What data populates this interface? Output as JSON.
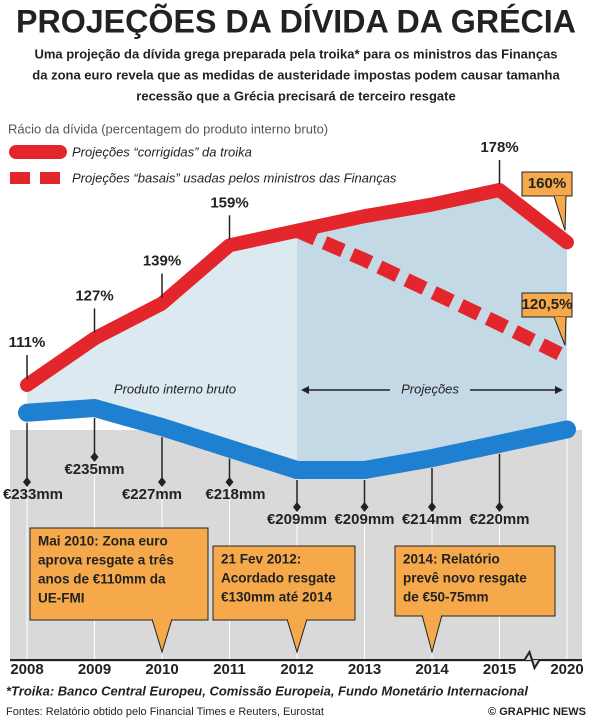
{
  "chart_data": {
    "type": "line",
    "title": "PROJEÇÕES DA DÍVIDA DA GRÉCIA",
    "subtitle": [
      "Uma projeção da dívida grega preparada pela troika* para os ministros das Finanças",
      "da zona euro revela que as medidas de austeridade impostas podem causar tamanha",
      "recessão que a Grécia precisará de terceiro resgate"
    ],
    "axis_label": "Rácio da dívida (percentagem do produto interno bruto)",
    "categories": [
      "2008",
      "2009",
      "2010",
      "2011",
      "2012",
      "2013",
      "2014",
      "2015",
      "2020"
    ],
    "series": [
      {
        "name": "Projeções “corrigidas” da troika",
        "color": "#e3262b",
        "style": "solid",
        "group": "debt",
        "values": [
          111,
          127,
          139,
          159,
          164,
          169,
          173,
          178,
          160
        ],
        "value_labels": [
          "111%",
          "127%",
          "139%",
          "159%",
          null,
          null,
          null,
          "178%",
          "160%"
        ]
      },
      {
        "name": "Projeções “basais” usadas pelos ministros das Finanças",
        "color": "#e3262b",
        "style": "dashed",
        "group": "debt",
        "values": [
          null,
          null,
          null,
          null,
          164,
          154,
          143,
          132,
          120.5
        ],
        "value_labels": [
          null,
          null,
          null,
          null,
          null,
          null,
          null,
          null,
          "120,5%"
        ]
      },
      {
        "name": "Produto interno bruto",
        "color": "#1f7fd1",
        "style": "solid",
        "group": "gdp",
        "values": [
          233,
          235,
          227,
          218,
          209,
          209,
          214,
          220,
          226
        ],
        "value_labels": [
          "€233mm",
          "€235mm",
          "€227mm",
          "€218mm",
          "€209mm",
          "€209mm",
          "€214mm",
          "€220mm",
          null
        ]
      }
    ],
    "projection_label": "Projeções",
    "annotations": [
      {
        "category": "2010",
        "lines": [
          "Mai 2010: Zona euro",
          "aprova resgate a três",
          "anos de €110mm da",
          "UE-FMI"
        ]
      },
      {
        "category": "2012",
        "lines": [
          "21 Fev 2012:",
          "Acordado resgate",
          "€130mm até 2014"
        ]
      },
      {
        "category": "2014",
        "lines": [
          "2014: Relatório",
          "prevê novo resgate",
          "de €50-75mm"
        ]
      }
    ],
    "footnote": "*Troika: Banco Central Europeu, Comissão Europeia, Fundo Monetário Internacional",
    "source": "Fontes: Relatório obtido pelo Financial Times e Reuters, Eurostat",
    "credit": "© GRAPHIC NEWS"
  }
}
